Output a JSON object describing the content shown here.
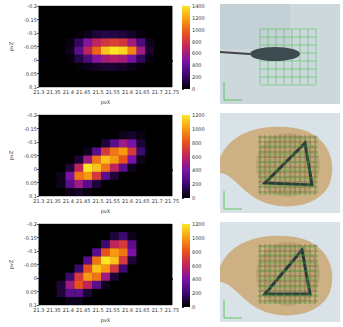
{
  "chart_data": [
    {
      "type": "heatmap",
      "x_label": "pvX",
      "y_label": "pvZ",
      "xlim": [
        21.3,
        21.75
      ],
      "xticks": [
        21.3,
        21.35,
        21.4,
        21.45,
        21.5,
        21.55,
        21.6,
        21.65,
        21.7,
        21.75
      ],
      "ylim": [
        -0.2,
        0.1
      ],
      "yticks": [
        -0.2,
        -0.15,
        -0.1,
        -0.05,
        0,
        0.05,
        0.1
      ],
      "x": [
        21.315,
        21.345,
        21.375,
        21.405,
        21.435,
        21.465,
        21.495,
        21.525,
        21.555,
        21.585,
        21.615,
        21.645,
        21.675,
        21.705,
        21.735
      ],
      "y": [
        -0.185,
        -0.155,
        -0.125,
        -0.095,
        -0.065,
        -0.035,
        -0.005,
        0.025,
        0.055,
        0.085
      ],
      "cells": [
        [
          0,
          0,
          0,
          0,
          0,
          0,
          0,
          0,
          0,
          0,
          0,
          0,
          0,
          0,
          0
        ],
        [
          0,
          0,
          0,
          0,
          0,
          0,
          0,
          0,
          0,
          0,
          0,
          0,
          0,
          0,
          0
        ],
        [
          0,
          0,
          0,
          0,
          0,
          0,
          0,
          0,
          0,
          0,
          0,
          0,
          0,
          0,
          0
        ],
        [
          0,
          0,
          0,
          0,
          20,
          60,
          120,
          150,
          150,
          120,
          80,
          30,
          0,
          0,
          0
        ],
        [
          0,
          0,
          0,
          40,
          200,
          500,
          700,
          800,
          850,
          800,
          600,
          300,
          60,
          0,
          0
        ],
        [
          0,
          0,
          0,
          60,
          350,
          700,
          1000,
          1300,
          1400,
          1350,
          1100,
          600,
          100,
          0,
          0
        ],
        [
          0,
          0,
          0,
          20,
          150,
          300,
          500,
          600,
          650,
          600,
          450,
          200,
          40,
          0,
          0
        ],
        [
          0,
          0,
          0,
          0,
          20,
          50,
          80,
          100,
          100,
          80,
          50,
          20,
          0,
          0,
          0
        ],
        [
          0,
          0,
          0,
          0,
          0,
          0,
          0,
          0,
          0,
          0,
          0,
          0,
          0,
          0,
          0
        ],
        [
          0,
          0,
          0,
          0,
          0,
          0,
          0,
          0,
          0,
          0,
          0,
          0,
          0,
          0,
          0
        ]
      ],
      "colorbar_range": [
        0,
        1400
      ],
      "colorbar_ticks": [
        0,
        200,
        400,
        600,
        800,
        1000,
        1200,
        1400
      ]
    },
    {
      "type": "heatmap",
      "x_label": "pvX",
      "y_label": "pvZ",
      "xlim": [
        21.3,
        21.75
      ],
      "xticks": [
        21.3,
        21.35,
        21.4,
        21.45,
        21.5,
        21.55,
        21.6,
        21.65,
        21.7,
        21.75
      ],
      "ylim": [
        -0.2,
        0.1
      ],
      "yticks": [
        -0.2,
        -0.15,
        -0.1,
        -0.05,
        0,
        0.05,
        0.1
      ],
      "x": [
        21.315,
        21.345,
        21.375,
        21.405,
        21.435,
        21.465,
        21.495,
        21.525,
        21.555,
        21.585,
        21.615,
        21.645,
        21.675,
        21.705,
        21.735
      ],
      "y": [
        -0.185,
        -0.155,
        -0.125,
        -0.095,
        -0.065,
        -0.035,
        -0.005,
        0.025,
        0.055,
        0.085
      ],
      "cells": [
        [
          0,
          0,
          0,
          0,
          0,
          0,
          0,
          0,
          0,
          0,
          0,
          0,
          0,
          0,
          0
        ],
        [
          0,
          0,
          0,
          0,
          0,
          0,
          0,
          0,
          0,
          0,
          0,
          0,
          0,
          0,
          0
        ],
        [
          0,
          0,
          0,
          0,
          0,
          0,
          0,
          0,
          0,
          50,
          80,
          30,
          0,
          0,
          0
        ],
        [
          0,
          0,
          0,
          0,
          0,
          0,
          0,
          100,
          300,
          500,
          400,
          100,
          0,
          0,
          0
        ],
        [
          0,
          0,
          0,
          0,
          0,
          50,
          300,
          700,
          900,
          1000,
          700,
          200,
          0,
          0,
          0
        ],
        [
          0,
          0,
          0,
          0,
          100,
          500,
          900,
          1100,
          1000,
          800,
          400,
          50,
          0,
          0,
          0
        ],
        [
          0,
          0,
          0,
          100,
          600,
          1200,
          1100,
          900,
          600,
          300,
          50,
          0,
          0,
          0,
          0
        ],
        [
          0,
          0,
          50,
          400,
          900,
          1000,
          700,
          300,
          100,
          0,
          0,
          0,
          0,
          0,
          0
        ],
        [
          0,
          0,
          50,
          300,
          500,
          300,
          100,
          0,
          0,
          0,
          0,
          0,
          0,
          0,
          0
        ],
        [
          0,
          0,
          0,
          50,
          80,
          30,
          0,
          0,
          0,
          0,
          0,
          0,
          0,
          0,
          0
        ]
      ],
      "colorbar_range": [
        0,
        1200
      ],
      "colorbar_ticks": [
        0,
        200,
        400,
        600,
        800,
        1000,
        1200
      ]
    },
    {
      "type": "heatmap",
      "x_label": "pvX",
      "y_label": "pvZ",
      "xlim": [
        21.3,
        21.75
      ],
      "xticks": [
        21.3,
        21.35,
        21.4,
        21.45,
        21.5,
        21.55,
        21.6,
        21.65,
        21.7,
        21.75
      ],
      "ylim": [
        -0.2,
        0.1
      ],
      "yticks": [
        -0.2,
        -0.15,
        -0.1,
        -0.05,
        0,
        0.05,
        0.1
      ],
      "x": [
        21.315,
        21.345,
        21.375,
        21.405,
        21.435,
        21.465,
        21.495,
        21.525,
        21.555,
        21.585,
        21.615,
        21.645,
        21.675,
        21.705,
        21.735
      ],
      "y": [
        -0.185,
        -0.155,
        -0.125,
        -0.095,
        -0.065,
        -0.035,
        -0.005,
        0.025,
        0.055,
        0.085
      ],
      "cells": [
        [
          0,
          0,
          0,
          0,
          0,
          0,
          0,
          0,
          0,
          0,
          0,
          0,
          0,
          0,
          0
        ],
        [
          0,
          0,
          0,
          0,
          0,
          0,
          0,
          0,
          100,
          200,
          50,
          0,
          0,
          0,
          0
        ],
        [
          0,
          0,
          0,
          0,
          0,
          0,
          0,
          200,
          600,
          700,
          300,
          0,
          0,
          0,
          0
        ],
        [
          0,
          0,
          0,
          0,
          0,
          0,
          300,
          800,
          1000,
          900,
          400,
          0,
          0,
          0,
          0
        ],
        [
          0,
          0,
          0,
          0,
          0,
          300,
          900,
          1200,
          1100,
          700,
          100,
          0,
          0,
          0,
          0
        ],
        [
          0,
          0,
          0,
          0,
          200,
          800,
          1100,
          1000,
          700,
          200,
          0,
          0,
          0,
          0,
          0
        ],
        [
          0,
          0,
          0,
          200,
          700,
          1000,
          900,
          500,
          100,
          0,
          0,
          0,
          0,
          0,
          0
        ],
        [
          0,
          0,
          100,
          500,
          800,
          600,
          300,
          50,
          0,
          0,
          0,
          0,
          0,
          0,
          0
        ],
        [
          0,
          0,
          100,
          300,
          300,
          100,
          0,
          0,
          0,
          0,
          0,
          0,
          0,
          0,
          0
        ],
        [
          0,
          0,
          0,
          50,
          50,
          0,
          0,
          0,
          0,
          0,
          0,
          0,
          0,
          0,
          0
        ]
      ],
      "colorbar_range": [
        0,
        1200
      ],
      "colorbar_ticks": [
        0,
        200,
        400,
        600,
        800,
        1000,
        1200
      ]
    }
  ]
}
